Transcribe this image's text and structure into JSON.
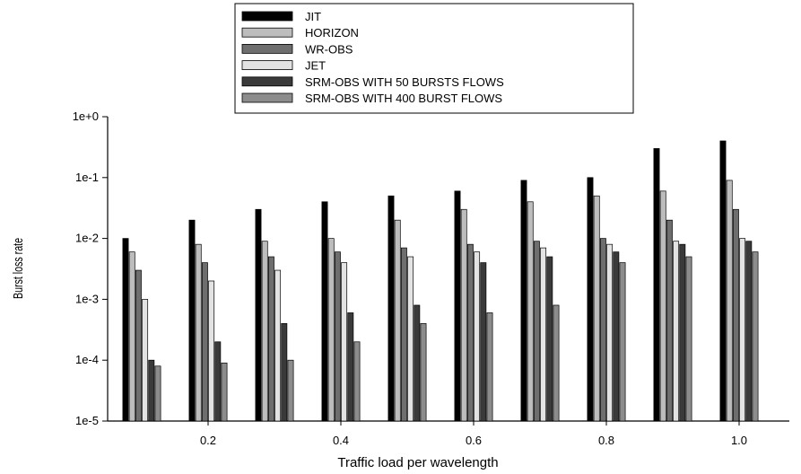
{
  "chart_data": {
    "type": "bar",
    "scale": "log",
    "xlabel": "Traffic load per wavelength",
    "ylabel": "Burst loss rate",
    "ylim": [
      1e-05,
      1
    ],
    "y_ticks": [
      {
        "value": 1,
        "label": "1e+0"
      },
      {
        "value": 0.1,
        "label": "1e-1"
      },
      {
        "value": 0.01,
        "label": "1e-2"
      },
      {
        "value": 0.001,
        "label": "1e-3"
      },
      {
        "value": 0.0001,
        "label": "1e-4"
      },
      {
        "value": 1e-05,
        "label": "1e-5"
      }
    ],
    "categories": [
      "0.1",
      "0.2",
      "0.3",
      "0.4",
      "0.5",
      "0.6",
      "0.7",
      "0.8",
      "0.9",
      "1.0"
    ],
    "x_tick_labels": [
      "",
      "0.2",
      "",
      "0.4",
      "",
      "0.6",
      "",
      "0.8",
      "",
      "1.0"
    ],
    "legend_position": "top-center",
    "series": [
      {
        "name": "JIT",
        "color": "#000000",
        "values": [
          0.01,
          0.02,
          0.03,
          0.04,
          0.05,
          0.06,
          0.09,
          0.1,
          0.3,
          0.4
        ]
      },
      {
        "name": "HORIZON",
        "color": "#bdbdbd",
        "values": [
          0.006,
          0.008,
          0.009,
          0.01,
          0.02,
          0.03,
          0.04,
          0.05,
          0.06,
          0.09
        ]
      },
      {
        "name": "WR-OBS",
        "color": "#6e6e6e",
        "values": [
          0.003,
          0.004,
          0.005,
          0.006,
          0.007,
          0.008,
          0.009,
          0.01,
          0.02,
          0.03
        ]
      },
      {
        "name": "JET",
        "color": "#e3e3e3",
        "values": [
          0.001,
          0.002,
          0.003,
          0.004,
          0.005,
          0.006,
          0.007,
          0.008,
          0.009,
          0.01
        ]
      },
      {
        "name": "SRM-OBS WITH 50 BURSTS FLOWS",
        "color": "#3a3a3a",
        "values": [
          0.0001,
          0.0002,
          0.0004,
          0.0006,
          0.0008,
          0.004,
          0.005,
          0.006,
          0.008,
          0.009
        ]
      },
      {
        "name": "SRM-OBS WITH 400 BURST FLOWS",
        "color": "#8c8c8c",
        "values": [
          8e-05,
          9e-05,
          0.0001,
          0.0002,
          0.0004,
          0.0006,
          0.0008,
          0.004,
          0.005,
          0.006
        ]
      }
    ]
  }
}
